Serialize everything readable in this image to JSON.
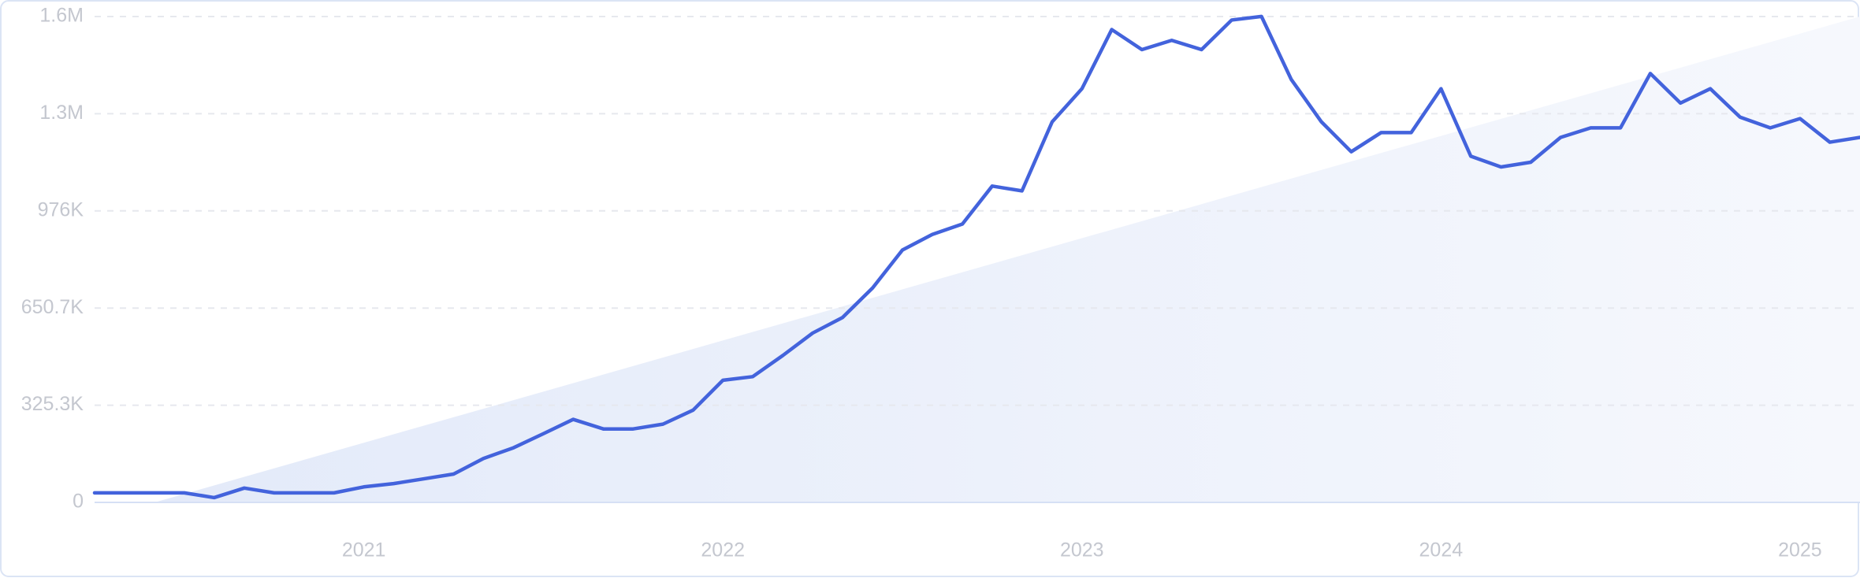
{
  "chart_data": {
    "type": "line",
    "x": [
      2020.25,
      2020.333,
      2020.417,
      2020.5,
      2020.583,
      2020.667,
      2020.75,
      2020.833,
      2020.917,
      2021,
      2021.083,
      2021.167,
      2021.25,
      2021.333,
      2021.417,
      2021.5,
      2021.583,
      2021.667,
      2021.75,
      2021.833,
      2021.917,
      2022,
      2022.083,
      2022.167,
      2022.25,
      2022.333,
      2022.417,
      2022.5,
      2022.583,
      2022.667,
      2022.75,
      2022.833,
      2022.917,
      2023,
      2023.083,
      2023.167,
      2023.25,
      2023.333,
      2023.417,
      2023.5,
      2023.583,
      2023.667,
      2023.75,
      2023.833,
      2023.917,
      2024,
      2024.083,
      2024.167,
      2024.25,
      2024.333,
      2024.417,
      2024.5,
      2024.583,
      2024.667,
      2024.75,
      2024.833,
      2024.917,
      2025,
      2025.083,
      2025.167
    ],
    "series": [
      {
        "color": "#4363dc",
        "values": [
          32000,
          32000,
          32000,
          32000,
          16000,
          48000,
          32000,
          32000,
          32000,
          52000,
          63000,
          79000,
          95000,
          147000,
          183000,
          230000,
          278000,
          246000,
          246000,
          262000,
          309000,
          409000,
          421000,
          492000,
          567000,
          619000,
          718000,
          845000,
          897000,
          932000,
          1059000,
          1043000,
          1274000,
          1385000,
          1583000,
          1516000,
          1547000,
          1516000,
          1615000,
          1627000,
          1416000,
          1274000,
          1174000,
          1238000,
          1238000,
          1385000,
          1159000,
          1123000,
          1139000,
          1222000,
          1254000,
          1254000,
          1436000,
          1337000,
          1385000,
          1290000,
          1254000,
          1285000,
          1206000,
          1222000
        ]
      }
    ],
    "trend": {
      "x": [
        2020.417,
        2025.167
      ],
      "values": [
        0,
        1626667
      ],
      "color": "#e3eaf9"
    },
    "xlim": [
      2020.25,
      2025.167
    ],
    "xticks": [
      2021,
      2022,
      2023,
      2024,
      2025
    ],
    "ylim": [
      0,
      1626667
    ],
    "yticks": [
      0,
      {
        "value": 325333,
        "label": "325.3K"
      },
      {
        "value": 650667,
        "label": "650.7K"
      },
      {
        "value": 976000,
        "label": "976K"
      },
      {
        "value": 1301333,
        "label": "1.3M"
      },
      {
        "value": 1626667,
        "label": "1.6M"
      }
    ],
    "grid": true
  }
}
